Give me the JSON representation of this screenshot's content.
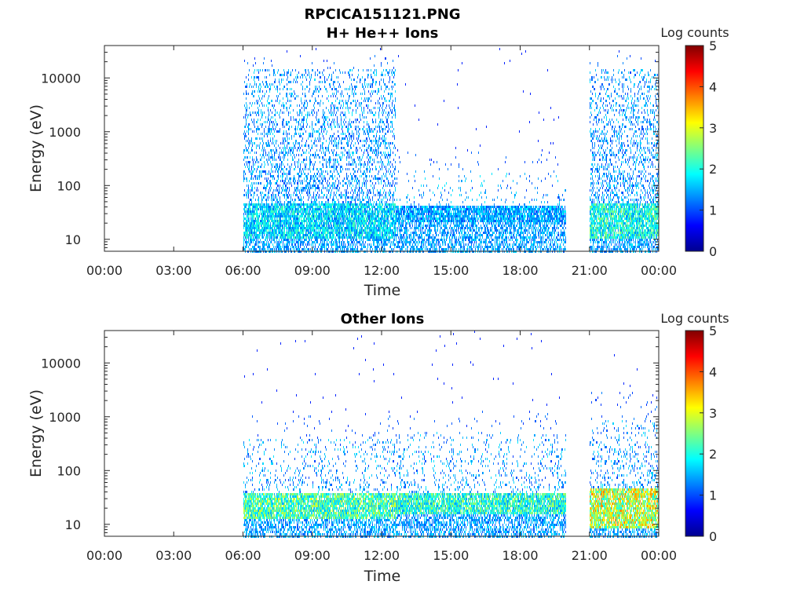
{
  "figure_title": "RPCICA151121.PNG",
  "chart_data": [
    {
      "type": "heatmap",
      "title": "H+ He++ Ions",
      "xlabel": "Time",
      "ylabel": "Energy (eV)",
      "x_ticks": [
        "00:00",
        "03:00",
        "06:00",
        "09:00",
        "12:00",
        "15:00",
        "18:00",
        "21:00",
        "00:00"
      ],
      "x_range_hours": [
        0,
        24
      ],
      "y_scale": "log",
      "y_range": [
        6,
        40000
      ],
      "y_ticks": [
        10,
        100,
        1000,
        10000
      ],
      "y_tick_labels": [
        "10",
        "100",
        "1000",
        "10000"
      ],
      "colorbar": {
        "label": "Log counts",
        "range": [
          0,
          5
        ],
        "ticks": [
          "0",
          "1",
          "2",
          "3",
          "4",
          "5"
        ]
      },
      "data_intervals": [
        {
          "start_h": 6.0,
          "end_h": 12.6,
          "emax": 18000,
          "dense_max": 15000,
          "band_low": 10,
          "band_high": 45,
          "band_peak": 2.0,
          "sparse": 0.75
        },
        {
          "start_h": 12.6,
          "end_h": 20.0,
          "emax": 300,
          "dense_max": 200,
          "band_low": 20,
          "band_high": 42,
          "band_peak": 1.7,
          "sparse": 0.15
        },
        {
          "start_h": 21.0,
          "end_h": 24.0,
          "emax": 18000,
          "dense_max": 15000,
          "band_low": 10,
          "band_high": 45,
          "band_peak": 2.3,
          "sparse": 0.7
        }
      ]
    },
    {
      "type": "heatmap",
      "title": "Other Ions",
      "xlabel": "Time",
      "ylabel": "Energy (eV)",
      "x_ticks": [
        "00:00",
        "03:00",
        "06:00",
        "09:00",
        "12:00",
        "15:00",
        "18:00",
        "21:00",
        "00:00"
      ],
      "x_range_hours": [
        0,
        24
      ],
      "y_scale": "log",
      "y_range": [
        6,
        40000
      ],
      "y_ticks": [
        10,
        100,
        1000,
        10000
      ],
      "y_tick_labels": [
        "10",
        "100",
        "1000",
        "10000"
      ],
      "colorbar": {
        "label": "Log counts",
        "range": [
          0,
          5
        ],
        "ticks": [
          "0",
          "1",
          "2",
          "3",
          "4",
          "5"
        ]
      },
      "data_intervals": [
        {
          "start_h": 6.0,
          "end_h": 12.6,
          "emax": 800,
          "dense_max": 400,
          "band_low": 12,
          "band_high": 40,
          "band_peak": 2.6,
          "sparse": 0.3
        },
        {
          "start_h": 12.6,
          "end_h": 20.0,
          "emax": 900,
          "dense_max": 500,
          "band_low": 15,
          "band_high": 40,
          "band_peak": 2.4,
          "sparse": 0.3
        },
        {
          "start_h": 21.0,
          "end_h": 24.0,
          "emax": 2000,
          "dense_max": 900,
          "band_low": 8,
          "band_high": 45,
          "band_peak": 3.3,
          "sparse": 0.45
        }
      ]
    }
  ]
}
